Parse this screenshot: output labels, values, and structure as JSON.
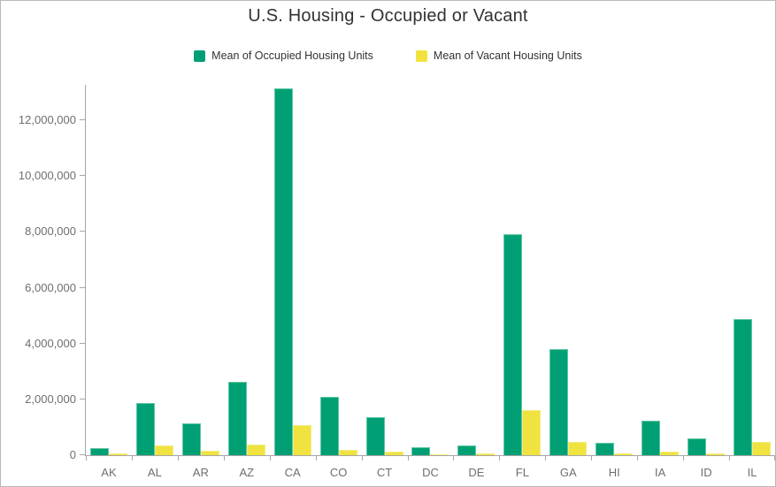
{
  "title": "U.S. Housing - Occupied or Vacant",
  "legend": {
    "items": [
      {
        "label": "Mean of Occupied Housing Units",
        "color": "#00a074"
      },
      {
        "label": "Mean of Vacant Housing Units",
        "color": "#f0e33f"
      }
    ]
  },
  "colors": {
    "occupied": "#00a074",
    "vacant": "#f0e33f",
    "axis": "#a6a6a6",
    "axis_text": "#6e6e6e",
    "title_text": "#323232"
  },
  "chart_data": {
    "type": "bar",
    "title": "U.S. Housing - Occupied or Vacant",
    "categories": [
      "AK",
      "AL",
      "AR",
      "AZ",
      "CA",
      "CO",
      "CT",
      "DC",
      "DE",
      "FL",
      "GA",
      "HI",
      "IA",
      "ID",
      "IL"
    ],
    "series": [
      {
        "name": "Mean of Occupied Housing Units",
        "color": "#00a074",
        "values": [
          260000,
          1880000,
          1130000,
          2620000,
          13150000,
          2100000,
          1360000,
          270000,
          340000,
          7900000,
          3800000,
          440000,
          1250000,
          600000,
          4880000
        ]
      },
      {
        "name": "Mean of Vacant Housing Units",
        "color": "#f0e33f",
        "values": [
          60000,
          360000,
          170000,
          390000,
          1080000,
          200000,
          120000,
          30000,
          60000,
          1600000,
          470000,
          60000,
          130000,
          60000,
          480000
        ]
      }
    ],
    "xlabel": "",
    "ylabel": "",
    "ylim": [
      0,
      13250000
    ],
    "yticks": [
      0,
      2000000,
      4000000,
      6000000,
      8000000,
      10000000,
      12000000
    ],
    "ytick_labels": [
      "0",
      "2,000,000",
      "4,000,000",
      "6,000,000",
      "8,000,000",
      "10,000,000",
      "12,000,000"
    ],
    "grid": false,
    "legend_position": "top"
  }
}
